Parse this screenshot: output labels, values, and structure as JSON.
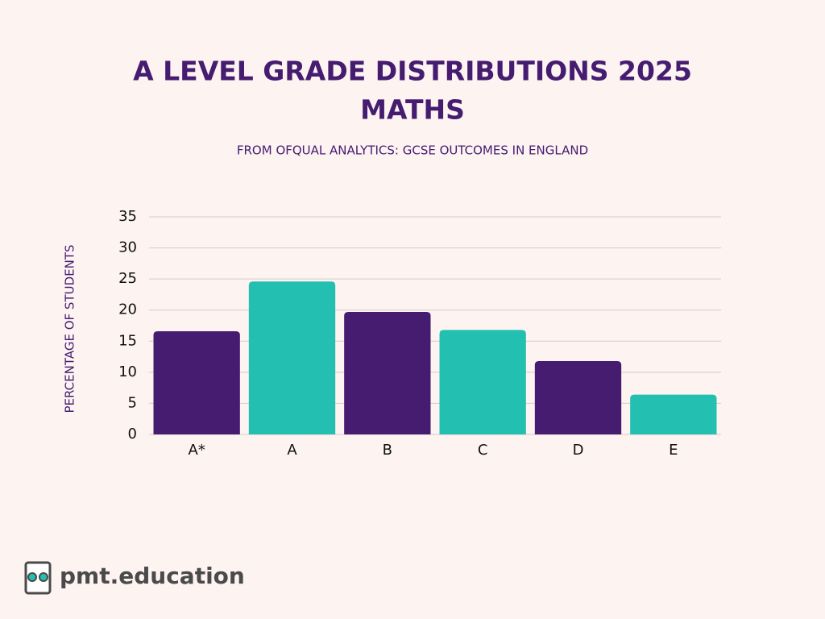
{
  "chart_data": {
    "type": "bar",
    "title": [
      "A LEVEL GRADE DISTRIBUTIONS 2025",
      "MATHS"
    ],
    "subtitle": "FROM OFQUAL ANALYTICS: GCSE OUTCOMES IN ENGLAND",
    "y_label": "PERCENTAGE OF STUDENTS",
    "categories": [
      "A*",
      "A",
      "B",
      "C",
      "D",
      "E"
    ],
    "values": [
      16.6,
      24.6,
      19.7,
      16.8,
      11.8,
      6.4
    ],
    "colors": [
      "#451c70",
      "#23bfb1",
      "#451c70",
      "#23bfb1",
      "#451c70",
      "#23bfb1"
    ],
    "ylim": [
      0,
      35
    ],
    "yticks": [
      0,
      5,
      10,
      15,
      20,
      25,
      30,
      35
    ],
    "grid": true
  },
  "logo": {
    "text": "pmt.education"
  }
}
